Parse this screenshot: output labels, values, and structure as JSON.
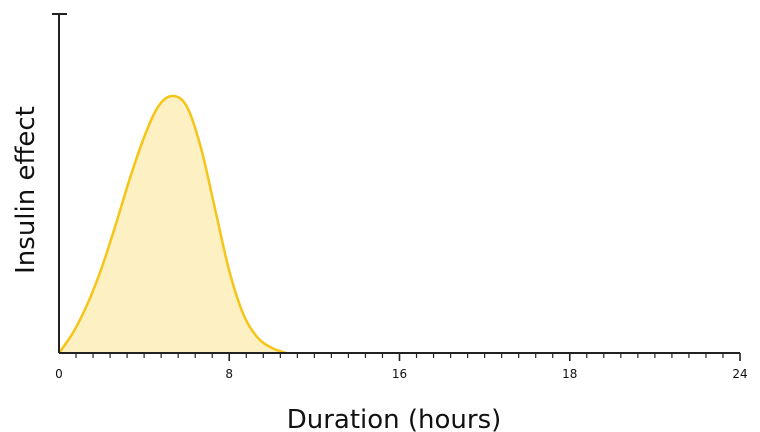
{
  "chart_data": {
    "type": "area",
    "title": "",
    "xlabel": "Duration (hours)",
    "ylabel": "Insulin effect",
    "x_ticks": [
      0,
      8,
      16,
      18,
      24
    ],
    "xlim": [
      0,
      24
    ],
    "ylim": [
      0,
      1
    ],
    "grid": false,
    "legend": "none",
    "series": [
      {
        "color": "#f5c518",
        "fill_color": "#fdf0c2",
        "x": [
          0,
          0.5,
          1,
          1.5,
          2,
          2.5,
          3,
          3.5,
          4,
          4.5,
          5,
          5.5,
          6,
          6.5,
          7,
          7.5,
          8
        ],
        "y": [
          0,
          0.08,
          0.19,
          0.33,
          0.5,
          0.68,
          0.84,
          0.96,
          1.0,
          0.96,
          0.8,
          0.56,
          0.32,
          0.15,
          0.06,
          0.02,
          0
        ]
      }
    ]
  }
}
